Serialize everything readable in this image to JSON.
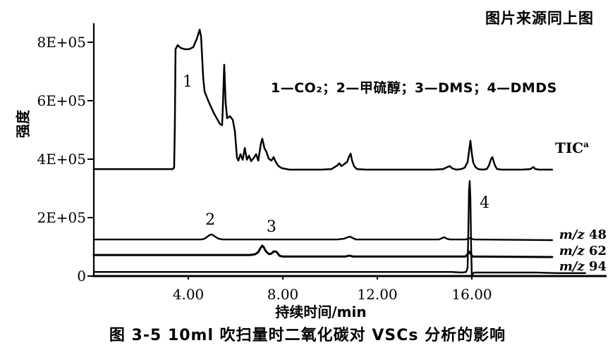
{
  "header": {
    "source_note": "图片来源同上图"
  },
  "caption": {
    "text": "图 3-5  10ml 吹扫量时二氧化碳对 VSCs 分析的影响"
  },
  "labels": {
    "tic": {
      "text": "TIC",
      "sup": "a"
    },
    "mz48": {
      "prefix": "m/z",
      "value": "48"
    },
    "mz62": {
      "prefix": "m/z",
      "value": "62"
    },
    "mz94": {
      "prefix": "m/z",
      "value": "94"
    }
  },
  "chart_data": {
    "type": "line",
    "title": "图 3-5  10ml 吹扫量时二氧化碳对 VSCs 分析的影响",
    "legend": "1—CO₂；2—甲硫醇；3—DMS；4—DMDS",
    "xlabel": "持续时间/min",
    "ylabel": "强度",
    "xlim": [
      0,
      21.7
    ],
    "ylim": [
      0,
      865000
    ],
    "grid": false,
    "line_color": "#000000",
    "x_ticks": {
      "values": [
        4,
        8,
        12,
        16
      ],
      "labels": [
        "4.00",
        "8.00",
        "12.00",
        "16.00"
      ]
    },
    "y_ticks": {
      "values": [
        800000,
        600000,
        400000,
        200000,
        0
      ],
      "labels": [
        "8E+05",
        "6E+05",
        "4E+05",
        "2E+05",
        "0"
      ]
    },
    "annotations": [
      {
        "label": "1",
        "t": 3.97,
        "v": 667000
      },
      {
        "label": "2",
        "t": 4.93,
        "v": 195000
      },
      {
        "label": "3",
        "t": 7.52,
        "v": 171000
      },
      {
        "label": "4",
        "t": 16.54,
        "v": 253000
      }
    ],
    "series": [
      {
        "key": "tic",
        "name": "TIC",
        "stroke_width": 2.5,
        "points": [
          [
            0,
            366000
          ],
          [
            3.34,
            366000
          ],
          [
            3.4,
            371000
          ],
          [
            3.43,
            511000
          ],
          [
            3.46,
            776000
          ],
          [
            3.55,
            790000
          ],
          [
            3.67,
            781000
          ],
          [
            3.85,
            776000
          ],
          [
            4.03,
            776000
          ],
          [
            4.21,
            783000
          ],
          [
            4.36,
            812000
          ],
          [
            4.48,
            843000
          ],
          [
            4.54,
            819000
          ],
          [
            4.63,
            679000
          ],
          [
            4.69,
            631000
          ],
          [
            4.84,
            600000
          ],
          [
            5.07,
            559000
          ],
          [
            5.34,
            520000
          ],
          [
            5.43,
            516000
          ],
          [
            5.46,
            571000
          ],
          [
            5.52,
            723000
          ],
          [
            5.58,
            595000
          ],
          [
            5.64,
            540000
          ],
          [
            5.76,
            547000
          ],
          [
            5.88,
            535000
          ],
          [
            5.97,
            496000
          ],
          [
            6.06,
            405000
          ],
          [
            6.12,
            395000
          ],
          [
            6.21,
            417000
          ],
          [
            6.3,
            398000
          ],
          [
            6.39,
            438000
          ],
          [
            6.48,
            398000
          ],
          [
            6.57,
            412000
          ],
          [
            6.66,
            393000
          ],
          [
            6.78,
            405000
          ],
          [
            6.87,
            417000
          ],
          [
            6.96,
            395000
          ],
          [
            7.07,
            453000
          ],
          [
            7.13,
            470000
          ],
          [
            7.22,
            438000
          ],
          [
            7.31,
            424000
          ],
          [
            7.4,
            402000
          ],
          [
            7.52,
            395000
          ],
          [
            7.61,
            407000
          ],
          [
            7.7,
            390000
          ],
          [
            7.82,
            376000
          ],
          [
            7.97,
            369000
          ],
          [
            8.27,
            364000
          ],
          [
            9,
            364000
          ],
          [
            9.61,
            364000
          ],
          [
            10.06,
            366000
          ],
          [
            10.3,
            378000
          ],
          [
            10.39,
            386000
          ],
          [
            10.48,
            376000
          ],
          [
            10.6,
            383000
          ],
          [
            10.72,
            390000
          ],
          [
            10.81,
            410000
          ],
          [
            10.87,
            419000
          ],
          [
            10.93,
            395000
          ],
          [
            11.01,
            376000
          ],
          [
            11.13,
            366000
          ],
          [
            11.55,
            364000
          ],
          [
            12.5,
            364000
          ],
          [
            13.5,
            364000
          ],
          [
            14.39,
            364000
          ],
          [
            14.78,
            366000
          ],
          [
            14.96,
            373000
          ],
          [
            15.07,
            376000
          ],
          [
            15.16,
            369000
          ],
          [
            15.34,
            364000
          ],
          [
            15.55,
            366000
          ],
          [
            15.7,
            371000
          ],
          [
            15.82,
            390000
          ],
          [
            15.88,
            426000
          ],
          [
            15.94,
            463000
          ],
          [
            16,
            419000
          ],
          [
            16.06,
            388000
          ],
          [
            16.15,
            373000
          ],
          [
            16.27,
            366000
          ],
          [
            16.45,
            364000
          ],
          [
            16.63,
            366000
          ],
          [
            16.72,
            378000
          ],
          [
            16.81,
            400000
          ],
          [
            16.87,
            407000
          ],
          [
            16.93,
            390000
          ],
          [
            16.99,
            376000
          ],
          [
            17.07,
            366000
          ],
          [
            17.28,
            364000
          ],
          [
            17.82,
            364000
          ],
          [
            18.12,
            364000
          ],
          [
            18.48,
            366000
          ],
          [
            18.6,
            373000
          ],
          [
            18.69,
            366000
          ],
          [
            18.87,
            364000
          ],
          [
            19.4,
            364000
          ]
        ]
      },
      {
        "key": "mz48",
        "name": "m/z 48",
        "stroke_width": 2.4,
        "points": [
          [
            0,
            125000
          ],
          [
            4.54,
            125000
          ],
          [
            4.69,
            128000
          ],
          [
            4.81,
            135000
          ],
          [
            4.93,
            142000
          ],
          [
            5.01,
            142000
          ],
          [
            5.13,
            135000
          ],
          [
            5.28,
            128000
          ],
          [
            5.46,
            125000
          ],
          [
            10.3,
            125000
          ],
          [
            10.6,
            128000
          ],
          [
            10.75,
            133000
          ],
          [
            10.84,
            135000
          ],
          [
            10.96,
            130000
          ],
          [
            11.1,
            125000
          ],
          [
            14.6,
            125000
          ],
          [
            14.75,
            130000
          ],
          [
            14.84,
            133000
          ],
          [
            14.93,
            128000
          ],
          [
            15.07,
            125000
          ],
          [
            15.73,
            125000
          ],
          [
            15.85,
            128000
          ],
          [
            15.91,
            130000
          ],
          [
            15.97,
            128000
          ],
          [
            16.09,
            125000
          ],
          [
            19.4,
            123000
          ]
        ]
      },
      {
        "key": "mz62",
        "name": "m/z 62",
        "stroke_width": 3,
        "points": [
          [
            0,
            72000
          ],
          [
            6.63,
            72000
          ],
          [
            6.84,
            75000
          ],
          [
            6.96,
            82000
          ],
          [
            7.04,
            94000
          ],
          [
            7.13,
            104000
          ],
          [
            7.19,
            99000
          ],
          [
            7.25,
            89000
          ],
          [
            7.34,
            80000
          ],
          [
            7.43,
            75000
          ],
          [
            7.52,
            77000
          ],
          [
            7.61,
            84000
          ],
          [
            7.7,
            84000
          ],
          [
            7.76,
            80000
          ],
          [
            7.85,
            70000
          ],
          [
            7.97,
            67000
          ],
          [
            10.66,
            67000
          ],
          [
            10.81,
            70000
          ],
          [
            10.96,
            67000
          ],
          [
            15.13,
            67000
          ],
          [
            15.73,
            67000
          ],
          [
            15.82,
            75000
          ],
          [
            15.88,
            84000
          ],
          [
            15.94,
            77000
          ],
          [
            16.03,
            67000
          ],
          [
            19.4,
            65000
          ]
        ]
      },
      {
        "key": "mz94",
        "name": "m/z 94",
        "stroke_width": 2.4,
        "points": [
          [
            0,
            14000
          ],
          [
            15.13,
            14000
          ],
          [
            15.58,
            12000
          ],
          [
            15.76,
            14000
          ],
          [
            15.82,
            29000
          ],
          [
            15.85,
            149000
          ],
          [
            15.88,
            294000
          ],
          [
            15.91,
            325000
          ],
          [
            15.94,
            265000
          ],
          [
            15.97,
            101000
          ],
          [
            16,
            0
          ],
          [
            16.03,
            5000
          ],
          [
            16.06,
            10000
          ],
          [
            16.12,
            12000
          ],
          [
            16.93,
            12000
          ],
          [
            17.82,
            12000
          ],
          [
            18.72,
            12000
          ],
          [
            19.61,
            10000
          ],
          [
            20.8,
            10000
          ]
        ]
      }
    ]
  }
}
